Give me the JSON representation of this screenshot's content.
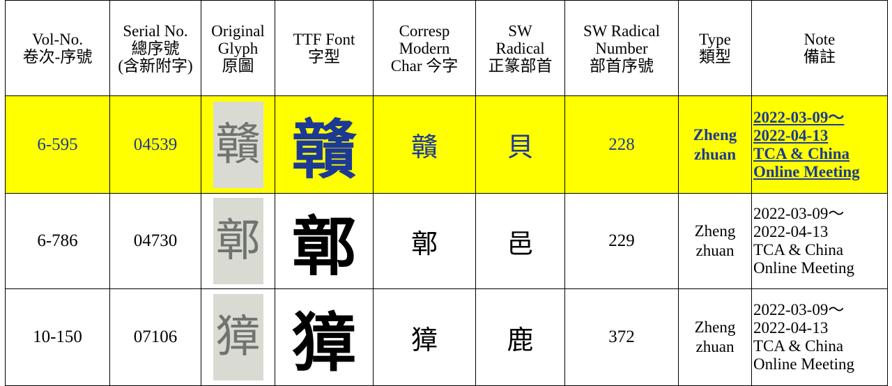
{
  "header": {
    "columns": [
      [
        "Vol-No.",
        "卷次-序號"
      ],
      [
        "Serial No.",
        "總序號",
        "(含新附字)"
      ],
      [
        "Original",
        "Glyph",
        "原圖"
      ],
      [
        "TTF Font",
        "字型"
      ],
      [
        "Corresp",
        "Modern",
        "Char 今字"
      ],
      [
        "SW",
        "Radical",
        "正篆部首"
      ],
      [
        "SW Radical",
        "Number",
        "部首序號"
      ],
      [
        "Type",
        "類型"
      ],
      [
        "Note",
        "備註"
      ]
    ]
  },
  "table": {
    "rows": [
      {
        "vol": "6-595",
        "serial": "04539",
        "modern": "贛",
        "radical": "貝",
        "radical_number": 228,
        "type": [
          "Zheng",
          "zhuan"
        ],
        "note": [
          "2022-03-09～",
          "2022-04-13",
          "TCA & China",
          "Online Meeting"
        ]
      },
      {
        "vol": "6-786",
        "serial": "04730",
        "modern": "鄣",
        "radical": "邑",
        "radical_number": 229,
        "type": [
          "Zheng",
          "zhuan"
        ],
        "note": [
          "2022-03-09～",
          "2022-04-13",
          "TCA & China",
          "Online Meeting"
        ]
      },
      {
        "vol": "10-150",
        "serial": "07106",
        "modern": "獐",
        "radical": "鹿",
        "radical_number": 372,
        "type": [
          "Zheng",
          "zhuan"
        ],
        "note": [
          "2022-03-09～",
          "2022-04-13",
          "TCA & China",
          "Online Meeting"
        ]
      }
    ]
  }
}
